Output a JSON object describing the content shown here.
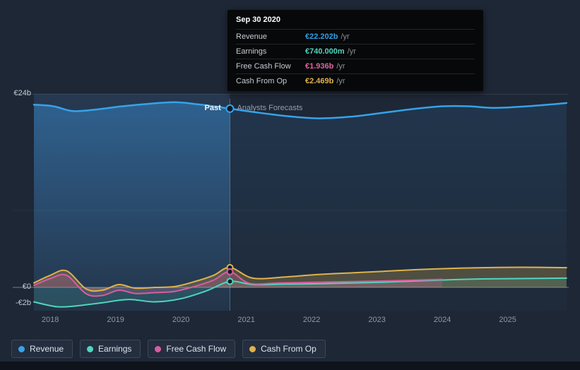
{
  "labels": {
    "past": "Past",
    "forecast": "Analysts Forecasts"
  },
  "tooltip": {
    "date": "Sep 30 2020",
    "rows": [
      {
        "label": "Revenue",
        "value": "€22.202b",
        "suffix": "/yr",
        "color": "#2e9fe6"
      },
      {
        "label": "Earnings",
        "value": "€740.000m",
        "suffix": "/yr",
        "color": "#4fd6c0"
      },
      {
        "label": "Free Cash Flow",
        "value": "€1.936b",
        "suffix": "/yr",
        "color": "#e0659f"
      },
      {
        "label": "Cash From Op",
        "value": "€2.469b",
        "suffix": "/yr",
        "color": "#dfb24e"
      }
    ]
  },
  "legend": {
    "items": [
      {
        "label": "Revenue",
        "color": "#35a3ea"
      },
      {
        "label": "Earnings",
        "color": "#4fd6c0"
      },
      {
        "label": "Free Cash Flow",
        "color": "#d95c9f"
      },
      {
        "label": "Cash From Op",
        "color": "#dfb24e"
      }
    ]
  },
  "chart_data": {
    "type": "line",
    "title": "Past results and analysts forecasts: Revenue, Earnings, Free Cash Flow, Cash From Op (EUR billions per year)",
    "x_range": [
      2017.75,
      2025.9
    ],
    "divider_x": 2020.75,
    "grid": "minimal",
    "legend_position": "bottom-left",
    "y_ticks": [
      {
        "label": "€24b",
        "value": 24
      },
      {
        "label": "€0",
        "value": 0
      },
      {
        "label": "-€2b",
        "value": -2
      }
    ],
    "x_ticks": [
      {
        "label": "2018",
        "value": 2018
      },
      {
        "label": "2019",
        "value": 2019
      },
      {
        "label": "2020",
        "value": 2020
      },
      {
        "label": "2021",
        "value": 2021
      },
      {
        "label": "2022",
        "value": 2022
      },
      {
        "label": "2023",
        "value": 2023
      },
      {
        "label": "2024",
        "value": 2024
      },
      {
        "label": "2025",
        "value": 2025
      }
    ],
    "series": [
      {
        "name": "Revenue",
        "color": "#35a3ea",
        "unit": "€b",
        "points": [
          [
            2017.75,
            22.7
          ],
          [
            2018.05,
            22.5
          ],
          [
            2018.35,
            21.9
          ],
          [
            2018.7,
            22.1
          ],
          [
            2019.1,
            22.5
          ],
          [
            2019.5,
            22.8
          ],
          [
            2019.9,
            23.0
          ],
          [
            2020.2,
            22.8
          ],
          [
            2020.5,
            22.5
          ],
          [
            2020.75,
            22.202
          ],
          [
            2021.1,
            21.8
          ],
          [
            2021.6,
            21.3
          ],
          [
            2022.1,
            21.0
          ],
          [
            2022.6,
            21.2
          ],
          [
            2023.1,
            21.7
          ],
          [
            2023.6,
            22.2
          ],
          [
            2024.0,
            22.5
          ],
          [
            2024.4,
            22.5
          ],
          [
            2024.8,
            22.3
          ],
          [
            2025.3,
            22.5
          ],
          [
            2025.9,
            22.9
          ]
        ]
      },
      {
        "name": "Cash From Op",
        "color": "#dfb24e",
        "unit": "€b",
        "points": [
          [
            2017.75,
            0.55
          ],
          [
            2018.0,
            1.5
          ],
          [
            2018.25,
            2.05
          ],
          [
            2018.55,
            -0.2
          ],
          [
            2018.8,
            -0.35
          ],
          [
            2019.05,
            0.35
          ],
          [
            2019.3,
            -0.1
          ],
          [
            2019.6,
            0.0
          ],
          [
            2019.9,
            0.1
          ],
          [
            2020.2,
            0.7
          ],
          [
            2020.5,
            1.5
          ],
          [
            2020.75,
            2.469
          ],
          [
            2021.1,
            1.15
          ],
          [
            2021.6,
            1.3
          ],
          [
            2022.1,
            1.6
          ],
          [
            2022.6,
            1.8
          ],
          [
            2023.1,
            2.0
          ],
          [
            2023.6,
            2.2
          ],
          [
            2024.1,
            2.35
          ],
          [
            2024.6,
            2.45
          ],
          [
            2025.2,
            2.5
          ],
          [
            2025.9,
            2.45
          ]
        ]
      },
      {
        "name": "Free Cash Flow",
        "color": "#d95c9f",
        "unit": "€b",
        "points": [
          [
            2017.75,
            0.25
          ],
          [
            2018.0,
            1.1
          ],
          [
            2018.25,
            1.5
          ],
          [
            2018.55,
            -0.8
          ],
          [
            2018.8,
            -1.0
          ],
          [
            2019.05,
            -0.35
          ],
          [
            2019.3,
            -0.75
          ],
          [
            2019.6,
            -0.65
          ],
          [
            2019.9,
            -0.5
          ],
          [
            2020.2,
            0.1
          ],
          [
            2020.5,
            0.9
          ],
          [
            2020.75,
            1.936
          ],
          [
            2021.05,
            0.5
          ],
          [
            2021.5,
            0.55
          ],
          [
            2022.0,
            0.62
          ],
          [
            2022.5,
            0.7
          ],
          [
            2023.0,
            0.78
          ],
          [
            2023.5,
            0.88
          ],
          [
            2024.0,
            1.0
          ]
        ]
      },
      {
        "name": "Earnings",
        "color": "#4fd6c0",
        "unit": "€b",
        "points": [
          [
            2017.75,
            -1.8
          ],
          [
            2018.1,
            -2.4
          ],
          [
            2018.4,
            -2.3
          ],
          [
            2018.8,
            -1.9
          ],
          [
            2019.2,
            -1.5
          ],
          [
            2019.6,
            -1.8
          ],
          [
            2020.0,
            -1.4
          ],
          [
            2020.4,
            -0.4
          ],
          [
            2020.75,
            0.74
          ],
          [
            2021.1,
            0.35
          ],
          [
            2021.6,
            0.4
          ],
          [
            2022.1,
            0.45
          ],
          [
            2022.6,
            0.55
          ],
          [
            2023.1,
            0.65
          ],
          [
            2023.6,
            0.8
          ],
          [
            2024.1,
            0.95
          ],
          [
            2024.6,
            1.05
          ],
          [
            2025.2,
            1.1
          ],
          [
            2025.9,
            1.15
          ]
        ]
      }
    ],
    "markers": [
      {
        "series": "Revenue",
        "x": 2020.75,
        "value": 22.202
      },
      {
        "series": "Cash From Op",
        "x": 2020.75,
        "value": 2.469
      },
      {
        "series": "Free Cash Flow",
        "x": 2020.75,
        "value": 1.936
      },
      {
        "series": "Earnings",
        "x": 2020.75,
        "value": 0.74
      }
    ]
  }
}
